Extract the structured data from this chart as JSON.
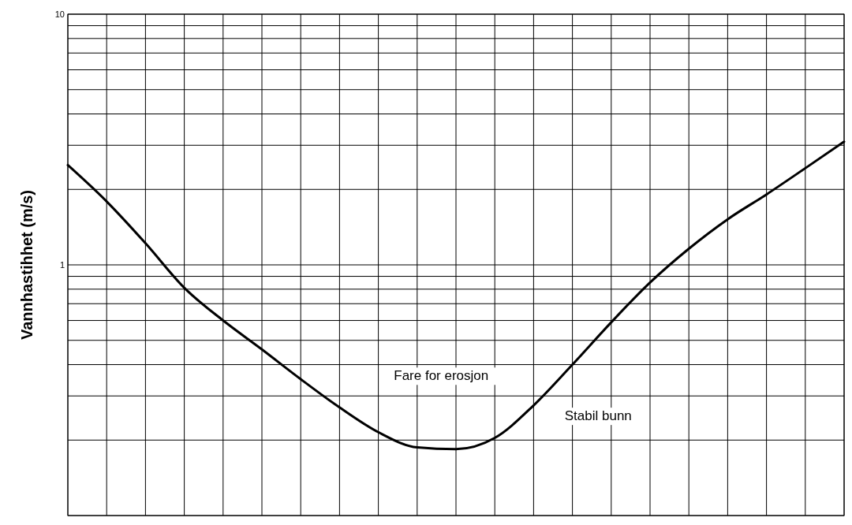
{
  "chart_data": {
    "type": "line",
    "ylabel": "Vannhastihhet (m/s)",
    "categories": [
      null,
      null,
      null,
      null,
      null,
      null,
      null,
      null,
      null,
      null,
      null,
      null,
      null,
      null,
      null,
      null,
      null,
      null,
      null,
      null,
      null
    ],
    "series": [
      {
        "color": "#000000",
        "values": [
          2.5,
          1.79,
          1.22,
          0.81,
          0.6,
          0.46,
          0.35,
          0.27,
          0.215,
          0.187,
          0.184,
          0.204,
          0.275,
          0.4,
          0.59,
          0.85,
          1.16,
          1.52,
          1.91,
          2.43,
          3.1
        ]
      }
    ],
    "log": "y",
    "ylim": [
      0.1,
      10
    ],
    "yticks": [
      {
        "value": 0.1,
        "label": null
      },
      {
        "value": 0.2,
        "label": null
      },
      {
        "value": 0.3,
        "label": null
      },
      {
        "value": 0.4,
        "label": null
      },
      {
        "value": 0.5,
        "label": null
      },
      {
        "value": 0.6,
        "label": null
      },
      {
        "value": 0.7,
        "label": null
      },
      {
        "value": 0.8,
        "label": null
      },
      {
        "value": 0.9,
        "label": null
      },
      1,
      {
        "value": 2,
        "label": null
      },
      {
        "value": 3,
        "label": null
      },
      {
        "value": 4,
        "label": null
      },
      {
        "value": 5,
        "label": null
      },
      {
        "value": 6,
        "label": null
      },
      {
        "value": 7,
        "label": null
      },
      {
        "value": 8,
        "label": null
      },
      {
        "value": 9,
        "label": null
      },
      10
    ],
    "grid": true,
    "line_style": "solid",
    "annotations": [
      "Fare for erosjon",
      "Stabil bunn"
    ]
  }
}
